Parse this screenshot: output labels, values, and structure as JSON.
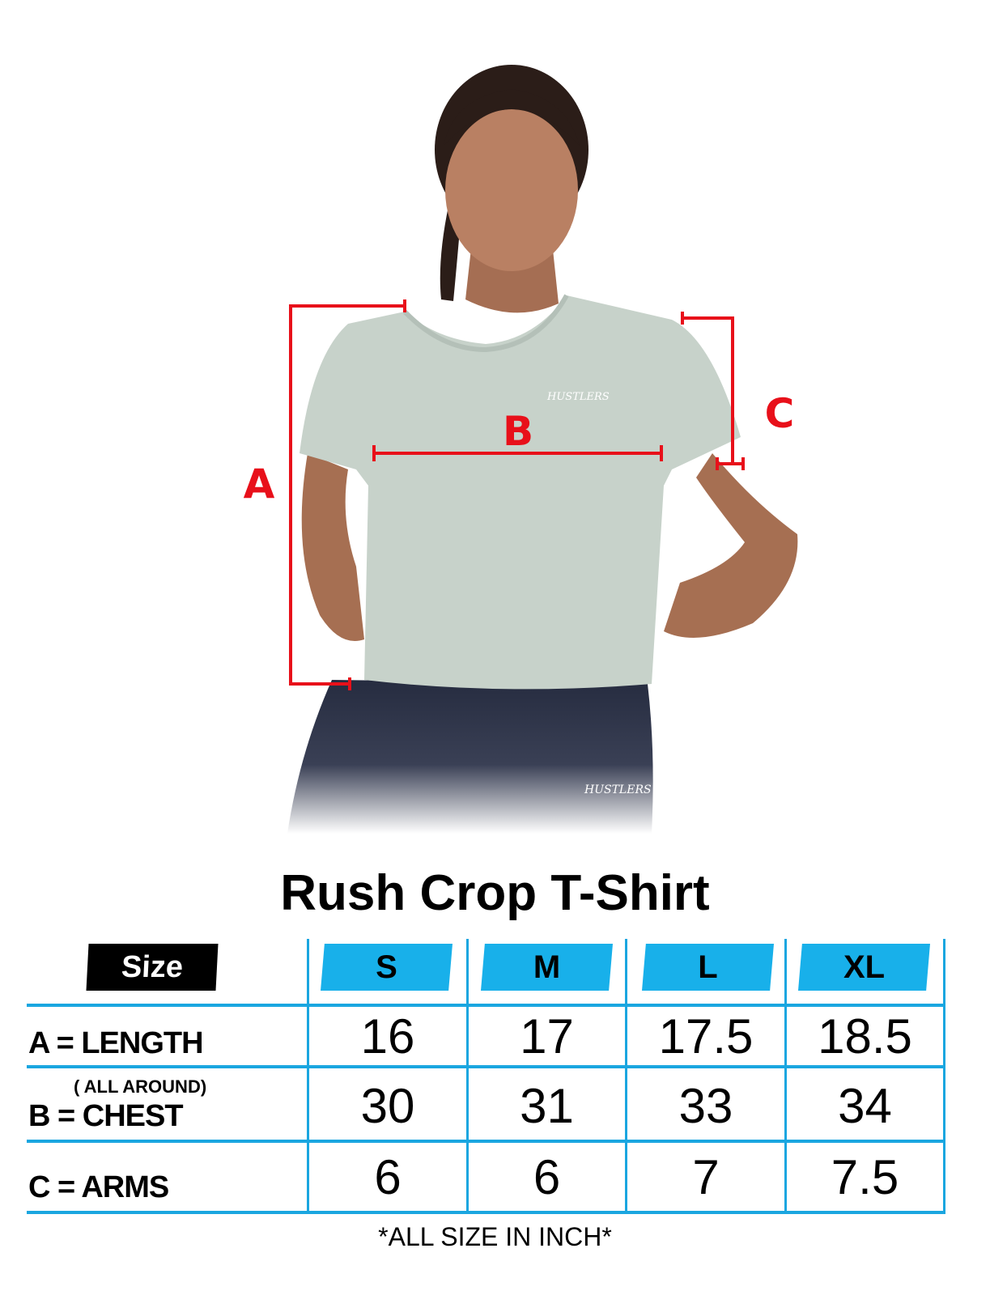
{
  "product_title": "Rush Crop T-Shirt",
  "brand_logo": "HUSTLERS",
  "diagram_labels": {
    "a": "A",
    "b": "B",
    "c": "C"
  },
  "colors": {
    "measure_red": "#e8101a",
    "table_blue": "#1aa6e0",
    "header_blue": "#18b0ea"
  },
  "table": {
    "size_label": "Size",
    "sizes": [
      "S",
      "M",
      "L",
      "XL"
    ],
    "rows": [
      {
        "label": "A = LENGTH",
        "sublabel": "",
        "values": [
          "16",
          "17",
          "17.5",
          "18.5"
        ]
      },
      {
        "label": "B = CHEST",
        "sublabel": "( ALL AROUND)",
        "values": [
          "30",
          "31",
          "33",
          "34"
        ]
      },
      {
        "label": "C = ARMS",
        "sublabel": "",
        "values": [
          "6",
          "6",
          "7",
          "7.5"
        ]
      }
    ]
  },
  "footnote": "*ALL SIZE IN INCH*"
}
